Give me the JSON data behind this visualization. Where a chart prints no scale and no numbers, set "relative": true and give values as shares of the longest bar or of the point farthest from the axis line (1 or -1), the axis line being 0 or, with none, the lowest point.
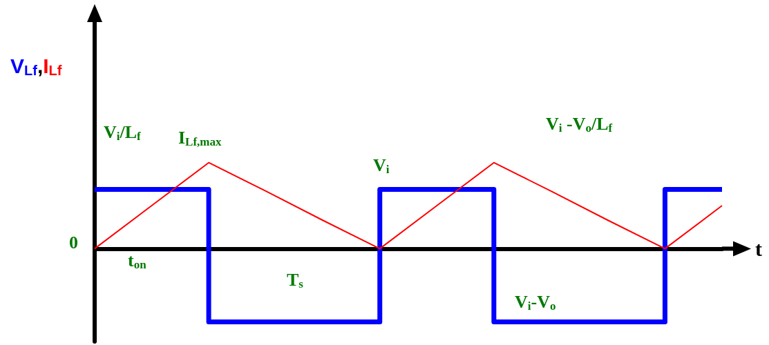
{
  "chart_data": {
    "type": "line",
    "xlabel": "t",
    "ylabel": "V$_{Lf}$,I$_{Lf}$",
    "relative": true,
    "marker": "none",
    "tick_labels": false,
    "categories": [
      null,
      null,
      null,
      null,
      null,
      null,
      null,
      null,
      null,
      null,
      null,
      null
    ],
    "series": [
      {
        "type": "step",
        "color": "#0000ff",
        "values": [
          0.69,
          0.69,
          -0.85,
          -0.85,
          -0.85,
          0.69,
          0.69,
          -0.85,
          -0.85,
          -0.85,
          0.69,
          0.69
        ]
      },
      {
        "color": "#ff0000",
        "values": [
          0,
          0.5,
          1,
          0.67,
          0.33,
          0,
          0.5,
          1,
          0.67,
          0.33,
          0,
          0.5
        ]
      }
    ],
    "annotations": [
      "0",
      "V$_{i}$/L$_{f}$",
      "I$_{Lf,max}$",
      "V$_{i}$",
      "V$_{i}$ -V$_{o}$/L$_{f}$",
      "t$_{on}$",
      "T$_{s}$",
      "V$_{i}$-V$_{o}$"
    ]
  }
}
